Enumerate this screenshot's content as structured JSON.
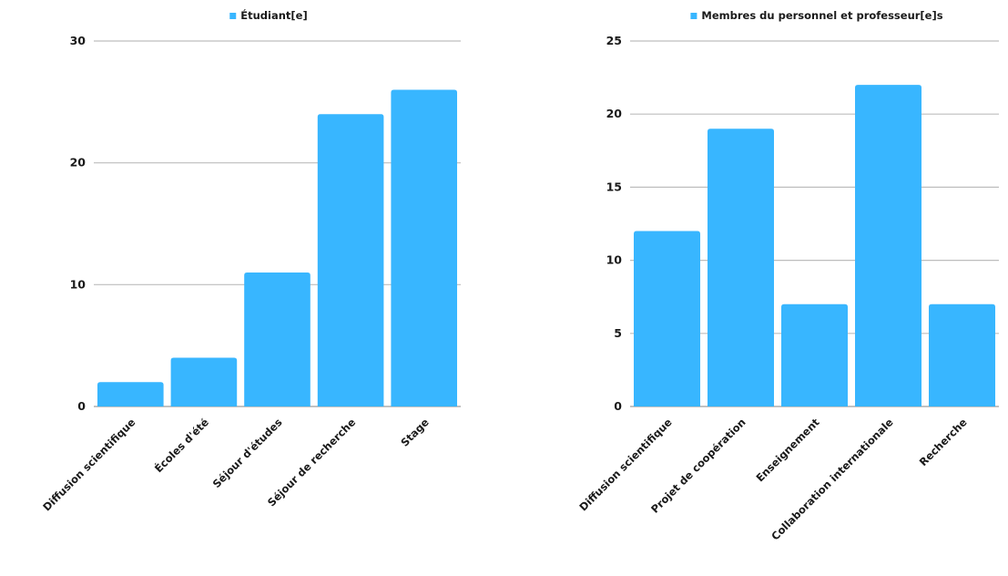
{
  "chart_data": [
    {
      "type": "bar",
      "title": "",
      "xlabel": "",
      "ylabel": "",
      "legend": {
        "position": "top",
        "color": "#38b6ff"
      },
      "series": [
        {
          "name": "Étudiant[e]",
          "values": [
            2,
            4,
            11,
            24,
            26
          ]
        }
      ],
      "categories": [
        "Diffusion scientifique",
        "Écoles d'été",
        "Séjour d'études",
        "Séjour de recherche",
        "Stage"
      ],
      "ylim": [
        0,
        30
      ],
      "yticks": [
        0,
        10,
        20,
        30
      ],
      "grid": true
    },
    {
      "type": "bar",
      "title": "",
      "xlabel": "",
      "ylabel": "",
      "legend": {
        "position": "top",
        "color": "#38b6ff"
      },
      "series": [
        {
          "name": "Membres du personnel et professeur[e]s",
          "values": [
            12,
            19,
            7,
            22,
            7
          ]
        }
      ],
      "categories": [
        "Diffusion scientifique",
        "Projet de coopération",
        "Enseignement",
        "Collaboration internationale",
        "Recherche"
      ],
      "ylim": [
        0,
        25
      ],
      "yticks": [
        0,
        5,
        10,
        15,
        20,
        25
      ],
      "grid": true
    }
  ],
  "colors": {
    "bar": "#38b6ff",
    "grid": "#bdbdbd",
    "axis": "#9e9e9e"
  }
}
